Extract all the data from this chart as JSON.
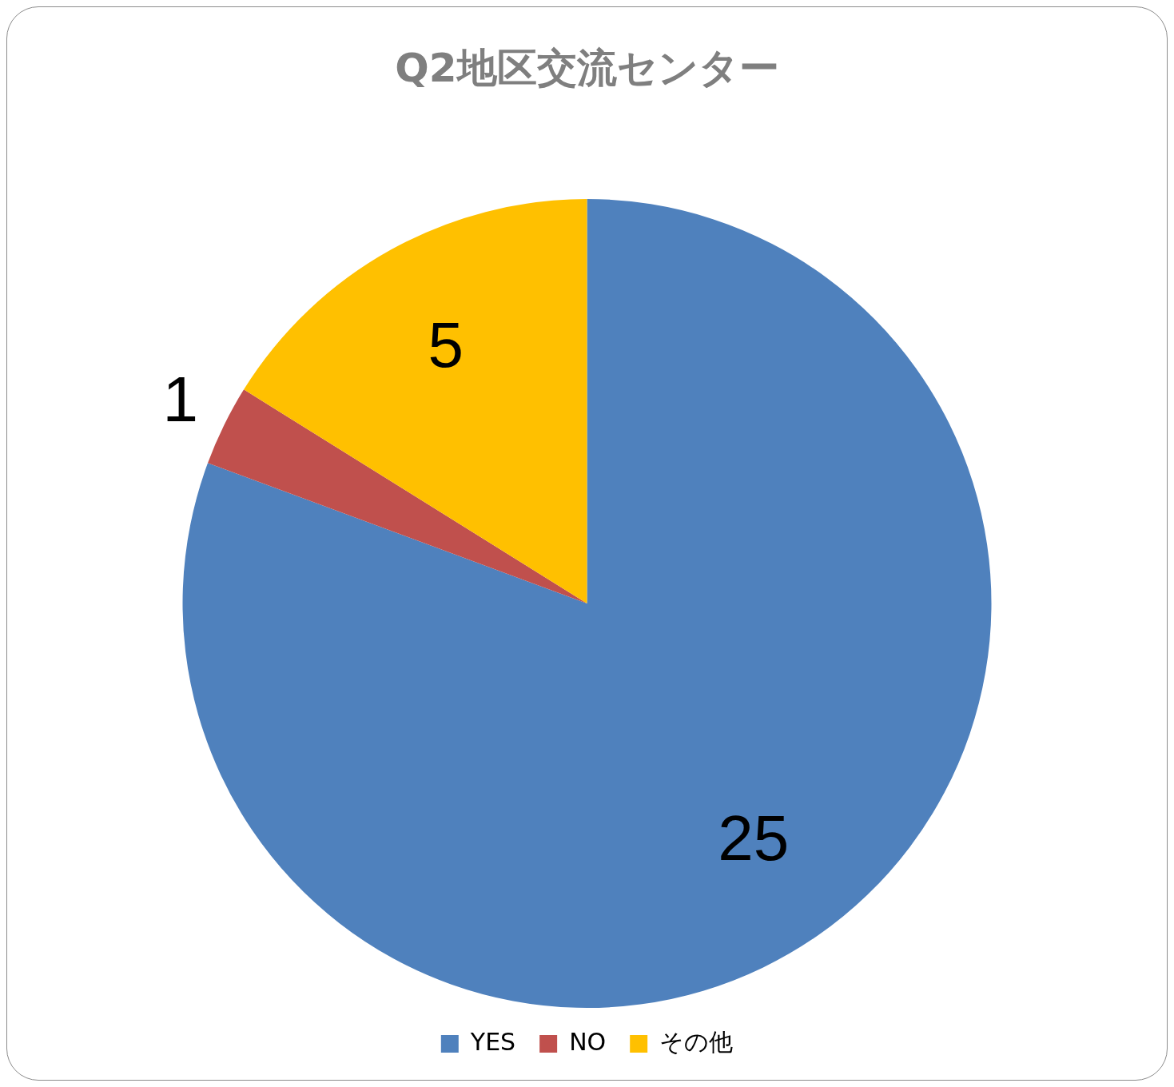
{
  "chart_data": {
    "type": "pie",
    "title": "Q2地区交流センター",
    "categories": [
      "YES",
      "NO",
      "その他"
    ],
    "values": [
      25,
      1,
      5
    ],
    "colors": [
      "#4f81bd",
      "#c0504d",
      "#ffc000"
    ],
    "data_labels": true,
    "legend": "bottom"
  }
}
